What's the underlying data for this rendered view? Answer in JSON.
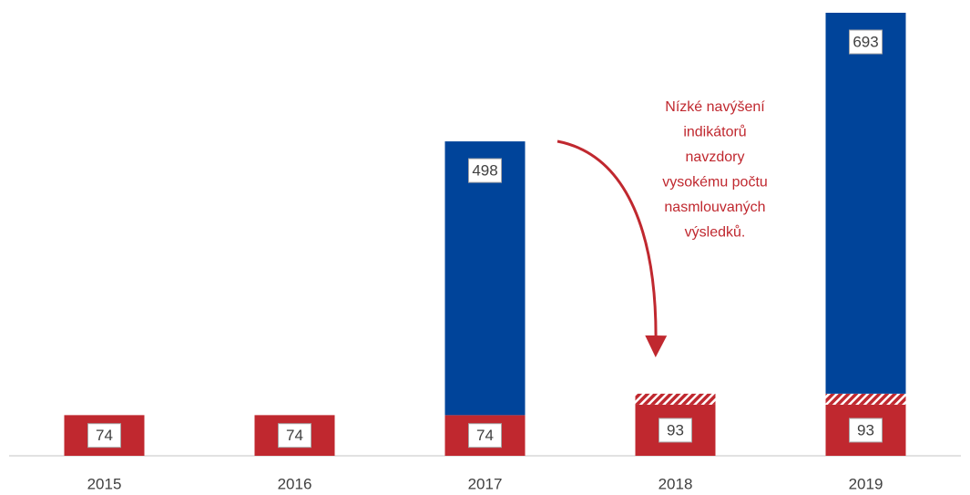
{
  "chart_data": {
    "type": "stacked_bar",
    "categories": [
      "2015",
      "2016",
      "2017",
      "2018",
      "2019"
    ],
    "series": [
      {
        "color": "#c0282f",
        "values": [
          74,
          74,
          74,
          93,
          93
        ],
        "labels": true
      },
      {
        "color": "#c0282f",
        "hatch": true,
        "values": [
          null,
          null,
          null,
          20,
          20
        ],
        "labels": false
      },
      {
        "color": "#00449a",
        "values": [
          null,
          null,
          498,
          null,
          693
        ],
        "labels": true
      }
    ],
    "annotation": {
      "color": "#c0282f",
      "lines": [
        "Nízké navýšení",
        "indikátorů",
        "navzdory",
        "vysokému počtu",
        "nasmlouvaných",
        "výsledků."
      ]
    }
  }
}
